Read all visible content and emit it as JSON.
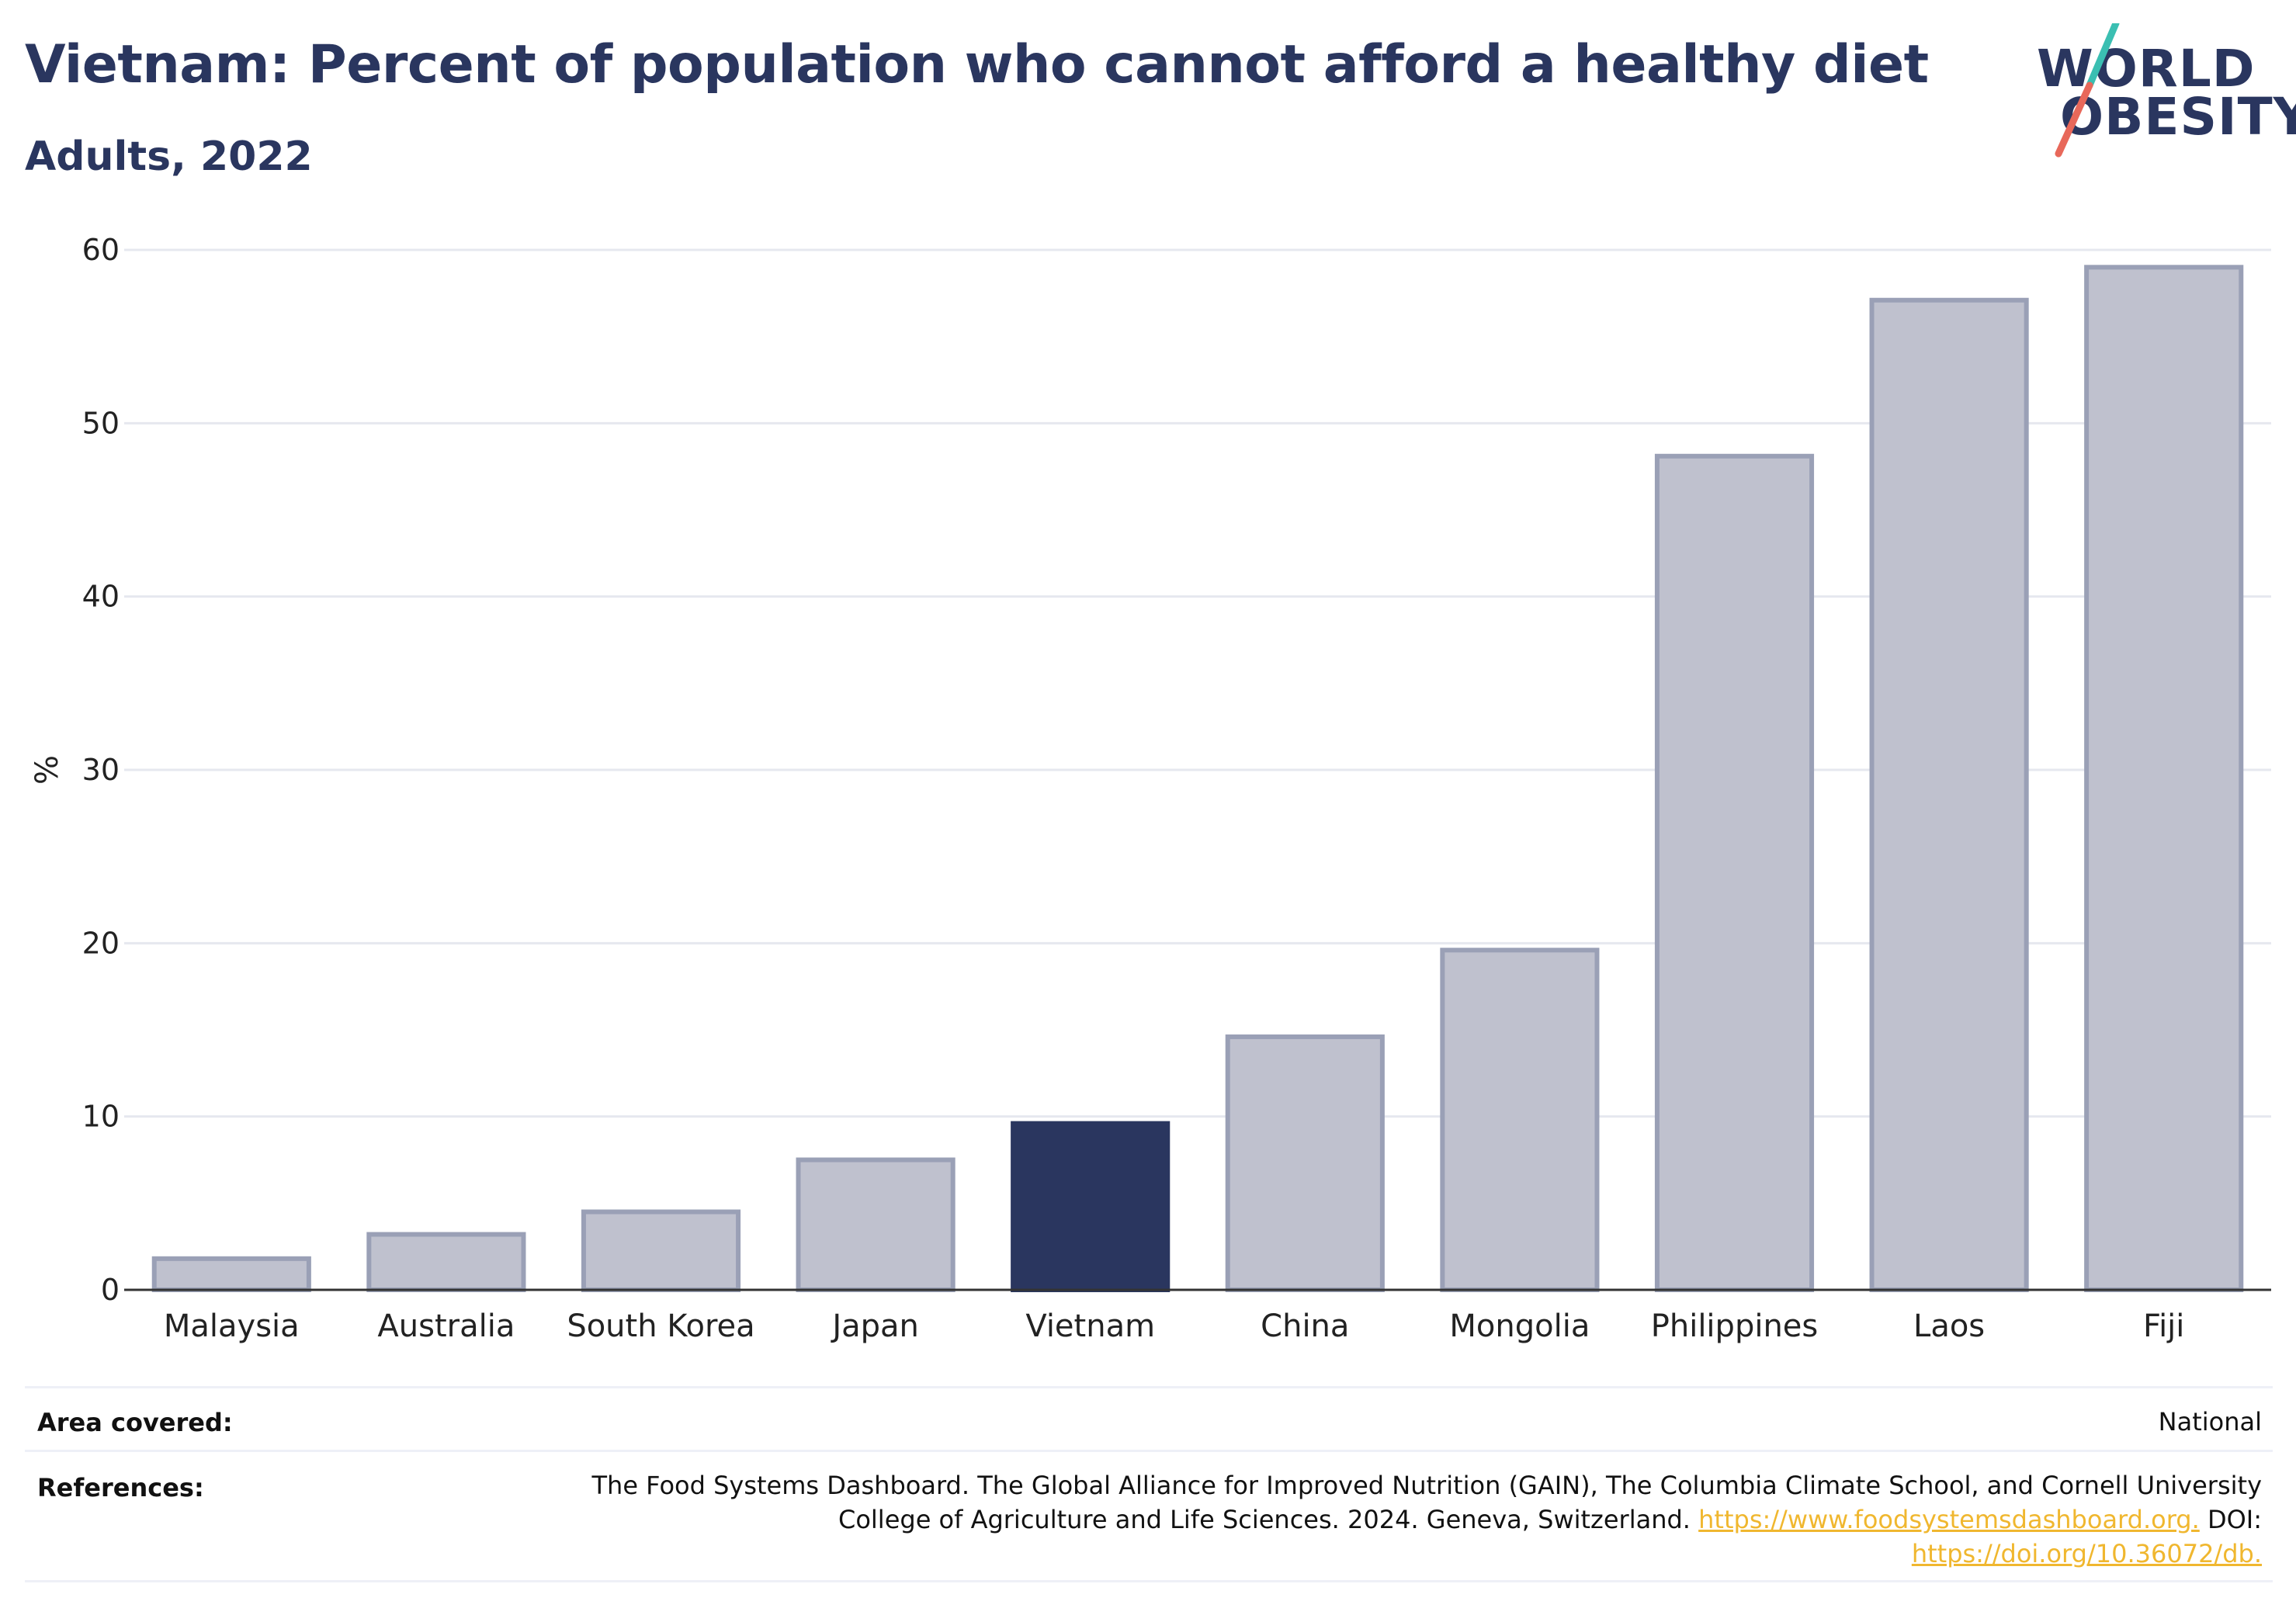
{
  "header": {
    "title": "Vietnam: Percent of population who cannot afford a healthy diet",
    "subtitle": "Adults, 2022"
  },
  "logo": {
    "line1": "WORLD",
    "line2": "OBESITY",
    "colors": {
      "text": "#2a365f",
      "slash_teal": "#3bbfb2",
      "slash_coral": "#e8685a"
    }
  },
  "chart_data": {
    "type": "bar",
    "ylabel": "%",
    "xlabel": "",
    "ylim": [
      0,
      60
    ],
    "yticks": [
      0,
      10,
      20,
      30,
      40,
      50,
      60
    ],
    "grid": true,
    "categories": [
      "Malaysia",
      "Australia",
      "South Korea",
      "Japan",
      "Vietnam",
      "China",
      "Mongolia",
      "Philippines",
      "Laos",
      "Fiji"
    ],
    "values": [
      1.8,
      3.2,
      4.5,
      7.5,
      9.6,
      14.6,
      19.6,
      48.1,
      57.1,
      59.0
    ],
    "highlight": "Vietnam",
    "colors": {
      "bar_fill": "#bfc1ce",
      "bar_stroke": "#9aa0b6",
      "highlight_fill": "#2a365f",
      "grid": "#e6e8ef",
      "axis": "#333333"
    }
  },
  "footer": {
    "area_label": "Area covered:",
    "area_value": "National",
    "references_label": "References:",
    "references_text": "The Food Systems Dashboard. The Global Alliance for Improved Nutrition (GAIN), The Columbia Climate School, and Cornell University College of Agriculture and Life Sciences. 2024. Geneva, Switzerland.",
    "references_link1": "https://www.foodsystemsdashboard.org.",
    "references_doi_label": "DOI:",
    "references_link2": "https://doi.org/10.36072/db."
  }
}
